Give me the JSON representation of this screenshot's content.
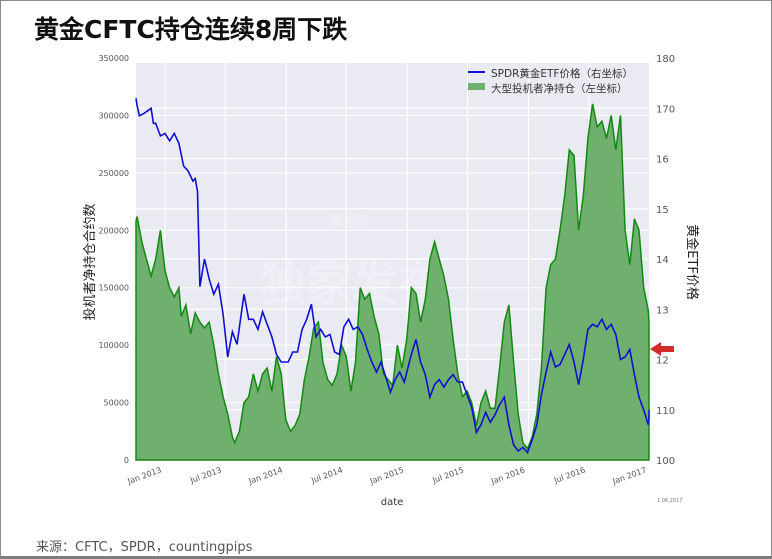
{
  "title": "黄金CFTC持仓连续8周下跌",
  "source": "来源：CFTC，SPDR，countingpips",
  "stamp": "1.06.2017",
  "watermark": {
    "main": "独家发布",
    "top": "黄金网",
    "bottom": "hjcom"
  },
  "colors": {
    "plot_bg": "#eaeaf2",
    "grid": "#ffffff",
    "area_fill": "#6fb06f",
    "area_line": "#118a11",
    "etf_line": "#1010d0",
    "arrow": "#d42b2b"
  },
  "chart_data": {
    "type": "line+area",
    "title": "黄金CFTC持仓连续8周下跌",
    "xlabel": "date",
    "ylabel_left": "投机者净持仓合约数",
    "ylabel_right": "黄金ETF价格",
    "ylim_left": [
      0,
      350000
    ],
    "ylim_right": [
      100,
      180
    ],
    "yticks_left": [
      "0",
      "50000",
      "100000",
      "150000",
      "200000",
      "250000",
      "300000",
      "350000"
    ],
    "yticks_right": [
      "100",
      "110",
      "12",
      "13",
      "14",
      "15",
      "16",
      "170",
      "180"
    ],
    "xticks": [
      "Jan 2013",
      "Jul 2013",
      "Jan 2014",
      "Jul 2014",
      "Jan 2015",
      "Jul 2015",
      "Jan 2016",
      "Jul 2016",
      "Jan 2017"
    ],
    "grid": true,
    "legend_position": "upper right",
    "legend": [
      "SPDR黄金ETF价格（右坐标）",
      "大型投机者净持仓（左坐标）"
    ],
    "annotation": "red arrow at right edge marking latest net position (~100000)",
    "x_range": [
      "2012-10",
      "2017-02"
    ],
    "series": [
      {
        "name": "大型投机者净持仓（左坐标）",
        "axis": "left",
        "type": "area",
        "points": [
          [
            "2012-10-02",
            208000
          ],
          [
            "2012-10-09",
            212000
          ],
          [
            "2012-10-23",
            190000
          ],
          [
            "2012-11-06",
            175000
          ],
          [
            "2012-11-20",
            160000
          ],
          [
            "2012-12-04",
            175000
          ],
          [
            "2012-12-18",
            200000
          ],
          [
            "2013-01-01",
            165000
          ],
          [
            "2013-01-15",
            150000
          ],
          [
            "2013-01-29",
            142000
          ],
          [
            "2013-02-12",
            150000
          ],
          [
            "2013-02-19",
            125000
          ],
          [
            "2013-03-05",
            135000
          ],
          [
            "2013-03-19",
            110000
          ],
          [
            "2013-04-02",
            128000
          ],
          [
            "2013-04-16",
            120000
          ],
          [
            "2013-04-30",
            115000
          ],
          [
            "2013-05-14",
            120000
          ],
          [
            "2013-05-28",
            100000
          ],
          [
            "2013-06-11",
            75000
          ],
          [
            "2013-06-25",
            55000
          ],
          [
            "2013-07-09",
            40000
          ],
          [
            "2013-07-23",
            20000
          ],
          [
            "2013-07-30",
            15000
          ],
          [
            "2013-08-13",
            25000
          ],
          [
            "2013-08-27",
            50000
          ],
          [
            "2013-09-10",
            55000
          ],
          [
            "2013-09-24",
            75000
          ],
          [
            "2013-10-08",
            60000
          ],
          [
            "2013-10-22",
            75000
          ],
          [
            "2013-11-05",
            80000
          ],
          [
            "2013-11-19",
            60000
          ],
          [
            "2013-12-03",
            90000
          ],
          [
            "2013-12-17",
            75000
          ],
          [
            "2013-12-31",
            35000
          ],
          [
            "2014-01-14",
            25000
          ],
          [
            "2014-01-28",
            30000
          ],
          [
            "2014-02-11",
            40000
          ],
          [
            "2014-02-25",
            70000
          ],
          [
            "2014-03-11",
            90000
          ],
          [
            "2014-03-25",
            115000
          ],
          [
            "2014-04-08",
            120000
          ],
          [
            "2014-04-22",
            85000
          ],
          [
            "2014-05-06",
            70000
          ],
          [
            "2014-05-20",
            65000
          ],
          [
            "2014-06-03",
            75000
          ],
          [
            "2014-06-17",
            100000
          ],
          [
            "2014-07-01",
            90000
          ],
          [
            "2014-07-15",
            60000
          ],
          [
            "2014-07-29",
            85000
          ],
          [
            "2014-08-12",
            150000
          ],
          [
            "2014-08-26",
            140000
          ],
          [
            "2014-09-09",
            145000
          ],
          [
            "2014-09-23",
            125000
          ],
          [
            "2014-10-07",
            110000
          ],
          [
            "2014-10-21",
            75000
          ],
          [
            "2014-11-04",
            70000
          ],
          [
            "2014-11-18",
            65000
          ],
          [
            "2014-12-02",
            100000
          ],
          [
            "2014-12-16",
            80000
          ],
          [
            "2014-12-30",
            105000
          ],
          [
            "2015-01-13",
            150000
          ],
          [
            "2015-01-27",
            145000
          ],
          [
            "2015-02-10",
            120000
          ],
          [
            "2015-02-24",
            140000
          ],
          [
            "2015-03-10",
            175000
          ],
          [
            "2015-03-24",
            190000
          ],
          [
            "2015-04-07",
            175000
          ],
          [
            "2015-04-21",
            160000
          ],
          [
            "2015-05-05",
            140000
          ],
          [
            "2015-05-19",
            105000
          ],
          [
            "2015-06-02",
            75000
          ],
          [
            "2015-06-16",
            55000
          ],
          [
            "2015-06-30",
            60000
          ],
          [
            "2015-07-14",
            50000
          ],
          [
            "2015-07-28",
            30000
          ],
          [
            "2015-08-11",
            50000
          ],
          [
            "2015-08-25",
            60000
          ],
          [
            "2015-09-08",
            45000
          ],
          [
            "2015-09-22",
            45000
          ],
          [
            "2015-10-06",
            80000
          ],
          [
            "2015-10-20",
            120000
          ],
          [
            "2015-11-03",
            135000
          ],
          [
            "2015-11-17",
            85000
          ],
          [
            "2015-12-01",
            40000
          ],
          [
            "2015-12-15",
            15000
          ],
          [
            "2015-12-29",
            10000
          ],
          [
            "2016-01-12",
            20000
          ],
          [
            "2016-01-26",
            40000
          ],
          [
            "2016-02-09",
            80000
          ],
          [
            "2016-02-23",
            150000
          ],
          [
            "2016-03-08",
            170000
          ],
          [
            "2016-03-22",
            175000
          ],
          [
            "2016-04-05",
            200000
          ],
          [
            "2016-04-19",
            230000
          ],
          [
            "2016-05-03",
            270000
          ],
          [
            "2016-05-17",
            265000
          ],
          [
            "2016-05-31",
            200000
          ],
          [
            "2016-06-14",
            230000
          ],
          [
            "2016-06-28",
            280000
          ],
          [
            "2016-07-12",
            310000
          ],
          [
            "2016-07-26",
            290000
          ],
          [
            "2016-08-09",
            295000
          ],
          [
            "2016-08-23",
            280000
          ],
          [
            "2016-09-06",
            300000
          ],
          [
            "2016-09-20",
            270000
          ],
          [
            "2016-10-04",
            300000
          ],
          [
            "2016-10-18",
            200000
          ],
          [
            "2016-11-01",
            170000
          ],
          [
            "2016-11-15",
            210000
          ],
          [
            "2016-11-29",
            200000
          ],
          [
            "2016-12-13",
            150000
          ],
          [
            "2016-12-27",
            130000
          ],
          [
            "2017-01-10",
            120000
          ],
          [
            "2017-01-31",
            100000
          ]
        ]
      },
      {
        "name": "SPDR黄金ETF价格（右坐标）",
        "axis": "right",
        "type": "line",
        "points": [
          [
            "2012-10-02",
            172
          ],
          [
            "2012-10-09",
            170.5
          ],
          [
            "2012-10-16",
            168.5
          ],
          [
            "2012-10-30",
            169
          ],
          [
            "2012-11-20",
            170
          ],
          [
            "2012-11-27",
            167
          ],
          [
            "2012-12-04",
            167
          ],
          [
            "2012-12-18",
            164.5
          ],
          [
            "2013-01-01",
            165
          ],
          [
            "2013-01-15",
            163.5
          ],
          [
            "2013-01-29",
            165
          ],
          [
            "2013-02-12",
            163
          ],
          [
            "2013-02-26",
            158.5
          ],
          [
            "2013-03-12",
            157.5
          ],
          [
            "2013-03-26",
            155.5
          ],
          [
            "2013-04-02",
            156
          ],
          [
            "2013-04-09",
            153.5
          ],
          [
            "2013-04-16",
            134.5
          ],
          [
            "2013-04-30",
            140
          ],
          [
            "2013-05-14",
            136
          ],
          [
            "2013-05-28",
            133
          ],
          [
            "2013-06-11",
            135
          ],
          [
            "2013-06-25",
            129
          ],
          [
            "2013-07-09",
            120.5
          ],
          [
            "2013-07-23",
            125.5
          ],
          [
            "2013-08-06",
            123
          ],
          [
            "2013-08-27",
            133
          ],
          [
            "2013-09-10",
            128
          ],
          [
            "2013-09-24",
            128
          ],
          [
            "2013-10-08",
            126
          ],
          [
            "2013-10-22",
            129.5
          ],
          [
            "2013-11-05",
            127
          ],
          [
            "2013-11-19",
            124.5
          ],
          [
            "2013-12-03",
            121
          ],
          [
            "2013-12-17",
            119.5
          ],
          [
            "2014-01-07",
            119.5
          ],
          [
            "2014-01-21",
            121.5
          ],
          [
            "2014-02-04",
            121.5
          ],
          [
            "2014-02-18",
            126
          ],
          [
            "2014-03-04",
            128
          ],
          [
            "2014-03-18",
            131
          ],
          [
            "2014-04-01",
            124.5
          ],
          [
            "2014-04-15",
            126
          ],
          [
            "2014-04-29",
            124.5
          ],
          [
            "2014-05-13",
            125
          ],
          [
            "2014-05-27",
            121.5
          ],
          [
            "2014-06-10",
            121
          ],
          [
            "2014-06-24",
            126.5
          ],
          [
            "2014-07-08",
            128
          ],
          [
            "2014-07-22",
            126
          ],
          [
            "2014-08-05",
            126.5
          ],
          [
            "2014-08-19",
            125
          ],
          [
            "2014-09-02",
            122
          ],
          [
            "2014-09-16",
            119.5
          ],
          [
            "2014-09-30",
            117.5
          ],
          [
            "2014-10-14",
            119.5
          ],
          [
            "2014-10-28",
            116.5
          ],
          [
            "2014-11-11",
            113.5
          ],
          [
            "2014-11-25",
            116
          ],
          [
            "2014-12-09",
            117.5
          ],
          [
            "2014-12-23",
            115.5
          ],
          [
            "2015-01-13",
            121
          ],
          [
            "2015-01-27",
            124
          ],
          [
            "2015-02-10",
            119.5
          ],
          [
            "2015-02-24",
            117
          ],
          [
            "2015-03-10",
            112.5
          ],
          [
            "2015-03-24",
            115
          ],
          [
            "2015-04-07",
            116
          ],
          [
            "2015-04-21",
            114.5
          ],
          [
            "2015-05-05",
            116
          ],
          [
            "2015-05-19",
            117
          ],
          [
            "2015-06-02",
            115.5
          ],
          [
            "2015-06-16",
            115.5
          ],
          [
            "2015-06-30",
            113
          ],
          [
            "2015-07-14",
            110.5
          ],
          [
            "2015-07-28",
            105.5
          ],
          [
            "2015-08-11",
            107
          ],
          [
            "2015-08-25",
            109.5
          ],
          [
            "2015-09-08",
            107.5
          ],
          [
            "2015-09-22",
            109
          ],
          [
            "2015-10-06",
            111
          ],
          [
            "2015-10-20",
            112.5
          ],
          [
            "2015-11-03",
            107
          ],
          [
            "2015-11-17",
            103
          ],
          [
            "2015-12-01",
            101.8
          ],
          [
            "2015-12-15",
            102.5
          ],
          [
            "2015-12-29",
            101.5
          ],
          [
            "2016-01-12",
            104
          ],
          [
            "2016-01-26",
            107
          ],
          [
            "2016-02-09",
            113
          ],
          [
            "2016-02-23",
            117.5
          ],
          [
            "2016-03-08",
            121.5
          ],
          [
            "2016-03-22",
            118.5
          ],
          [
            "2016-04-05",
            119
          ],
          [
            "2016-04-19",
            121
          ],
          [
            "2016-05-03",
            123
          ],
          [
            "2016-05-17",
            119.5
          ],
          [
            "2016-05-31",
            115
          ],
          [
            "2016-06-14",
            120
          ],
          [
            "2016-06-28",
            126
          ],
          [
            "2016-07-12",
            127
          ],
          [
            "2016-07-26",
            126.5
          ],
          [
            "2016-08-09",
            128
          ],
          [
            "2016-08-23",
            126
          ],
          [
            "2016-09-06",
            127
          ],
          [
            "2016-09-20",
            125
          ],
          [
            "2016-10-04",
            120
          ],
          [
            "2016-10-18",
            120.5
          ],
          [
            "2016-11-01",
            122
          ],
          [
            "2016-11-15",
            117
          ],
          [
            "2016-11-29",
            112.5
          ],
          [
            "2016-12-13",
            110
          ],
          [
            "2016-12-27",
            107
          ],
          [
            "2017-01-10",
            108.5
          ],
          [
            "2017-01-31",
            110
          ]
        ]
      }
    ]
  }
}
